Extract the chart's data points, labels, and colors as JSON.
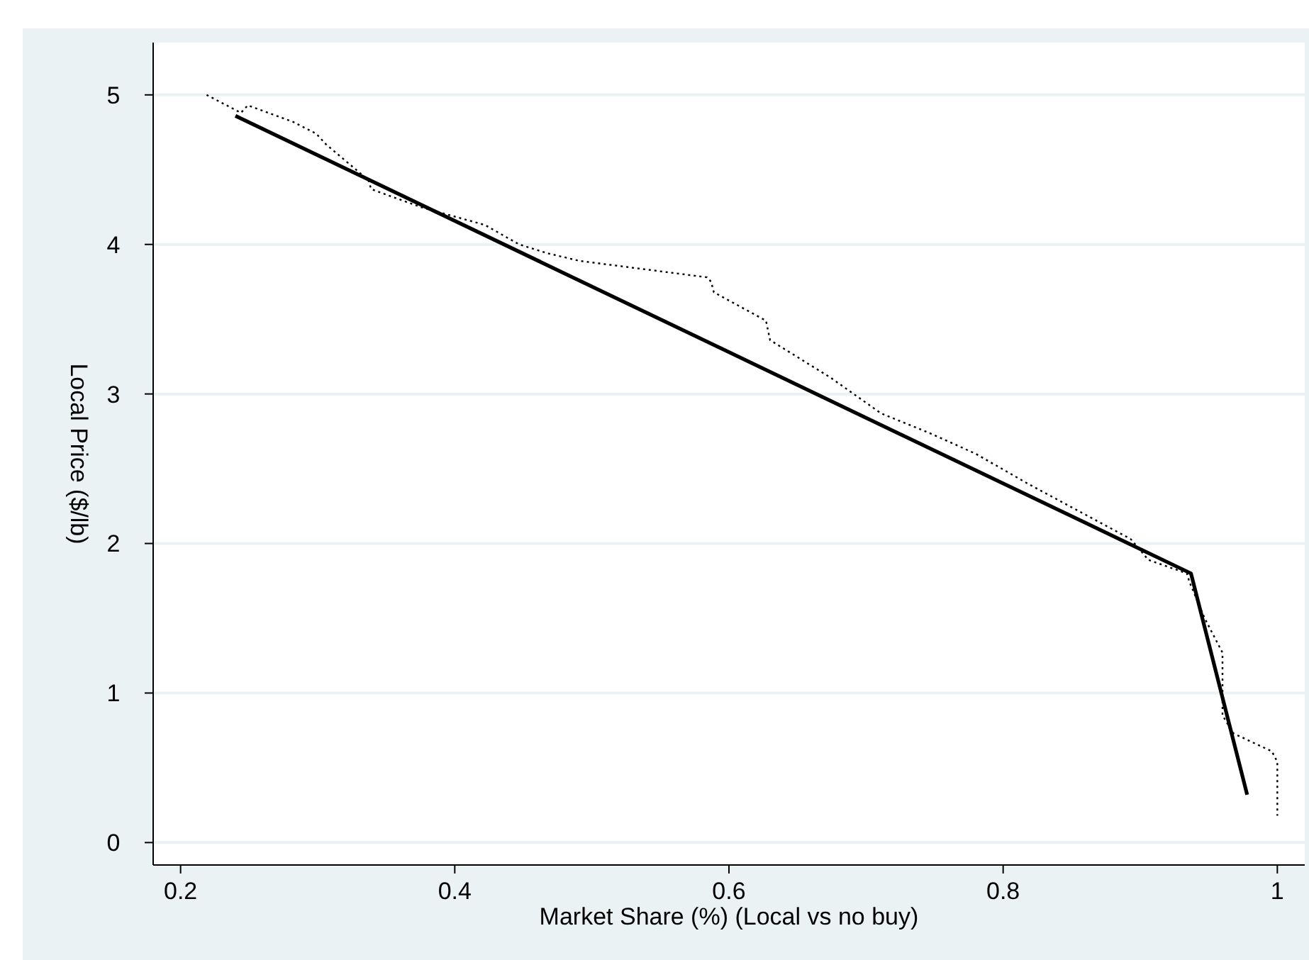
{
  "chart_data": {
    "type": "line",
    "xlabel": "Market Share (%) (Local vs no buy)",
    "ylabel": "Local Price ($/lb)",
    "xlim": [
      0.18,
      1.02
    ],
    "xticks": [
      0.2,
      0.4,
      0.6,
      0.8,
      1
    ],
    "ylim": [
      -0.15,
      5.35
    ],
    "yticks": [
      0,
      1,
      2,
      3,
      4,
      5
    ],
    "grid": "y",
    "marker": "none",
    "series": [
      {
        "color": "#000000",
        "line_style": "dotted",
        "x": [
          0.219,
          0.244,
          0.249,
          0.282,
          0.299,
          0.306,
          0.337,
          0.339,
          0.375,
          0.422,
          0.447,
          0.468,
          0.491,
          0.584,
          0.587,
          0.589,
          0.627,
          0.63,
          0.674,
          0.711,
          0.746,
          0.78,
          0.818,
          0.893,
          0.906,
          0.934,
          0.936,
          0.947,
          0.96,
          0.96,
          0.96,
          0.968,
          0.996,
          1,
          1
        ],
        "values": [
          5,
          4.88,
          4.93,
          4.82,
          4.74,
          4.67,
          4.43,
          4.37,
          4.25,
          4.13,
          4,
          3.94,
          3.89,
          3.78,
          3.75,
          3.68,
          3.49,
          3.36,
          3.11,
          2.87,
          2.74,
          2.6,
          2.4,
          2.03,
          1.89,
          1.8,
          1.74,
          1.5,
          1.27,
          1.08,
          0.85,
          0.73,
          0.61,
          0.54,
          0.18
        ]
      },
      {
        "color": "#000000",
        "line_style": "solid",
        "x": [
          0.24,
          0.937,
          0.978
        ],
        "values": [
          4.86,
          1.8,
          0.32
        ]
      }
    ]
  }
}
